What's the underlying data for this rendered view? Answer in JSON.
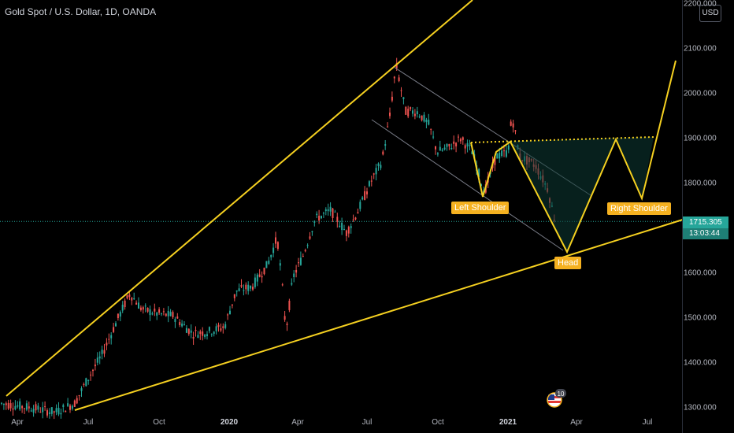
{
  "header": {
    "symbol_title": "Gold Spot / U.S. Dollar, 1D, OANDA"
  },
  "price_axis": {
    "currency_button": "USD",
    "ticks": [
      "2200.000",
      "2100.000",
      "2000.000",
      "1900.000",
      "1800.000",
      "1700.000",
      "1600.000",
      "1500.000",
      "1400.000",
      "1300.000"
    ],
    "current_price": "1715.305",
    "countdown": "13:03:44"
  },
  "time_axis": {
    "ticks": [
      {
        "label": "Apr",
        "year": false
      },
      {
        "label": "Jul",
        "year": false
      },
      {
        "label": "Oct",
        "year": false
      },
      {
        "label": "2020",
        "year": true
      },
      {
        "label": "Apr",
        "year": false
      },
      {
        "label": "Jul",
        "year": false
      },
      {
        "label": "Oct",
        "year": false
      },
      {
        "label": "2021",
        "year": true
      },
      {
        "label": "Apr",
        "year": false
      },
      {
        "label": "Jul",
        "year": false
      }
    ]
  },
  "annotations": {
    "left_shoulder": "Left Shoulder",
    "head": "Head",
    "right_shoulder": "Right Shoulder"
  },
  "events_badge": {
    "count": "10"
  },
  "colors": {
    "up": "#26a69a",
    "down": "#ef5350",
    "drawing": "#f5d020",
    "label_bg": "#f5b120",
    "channel": "#787b86",
    "current_price_line": "#26a69a"
  }
}
